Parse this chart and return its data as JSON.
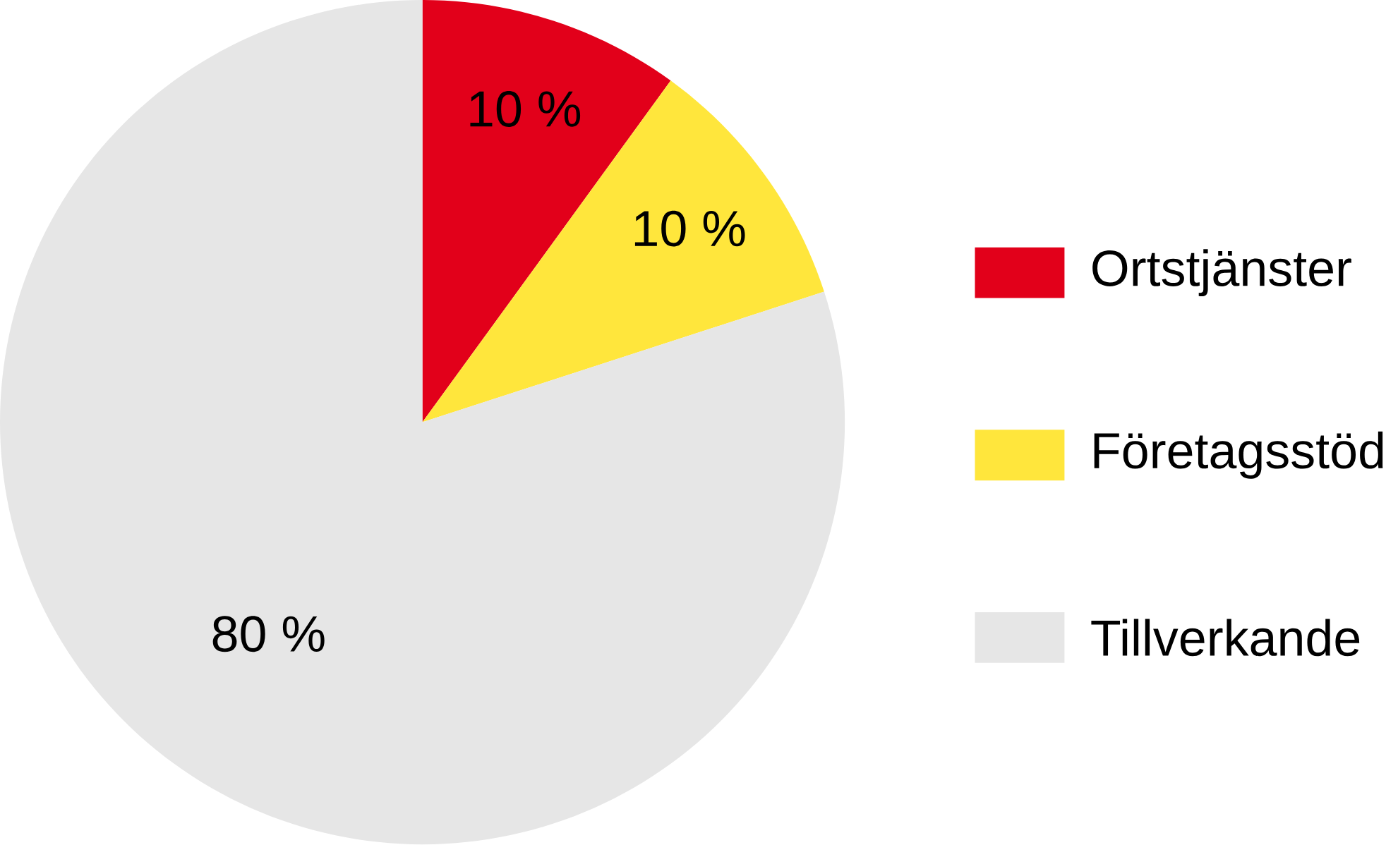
{
  "chart_data": {
    "type": "pie",
    "categories": [
      "Ortstjänster",
      "Företagsstöd",
      "Tillverkande"
    ],
    "values": [
      10,
      10,
      80
    ],
    "colors": [
      "#e2001a",
      "#ffe63c",
      "#e6e6e6"
    ],
    "value_labels": [
      "10 %",
      "10 %",
      "80 %"
    ],
    "legend": "right"
  }
}
